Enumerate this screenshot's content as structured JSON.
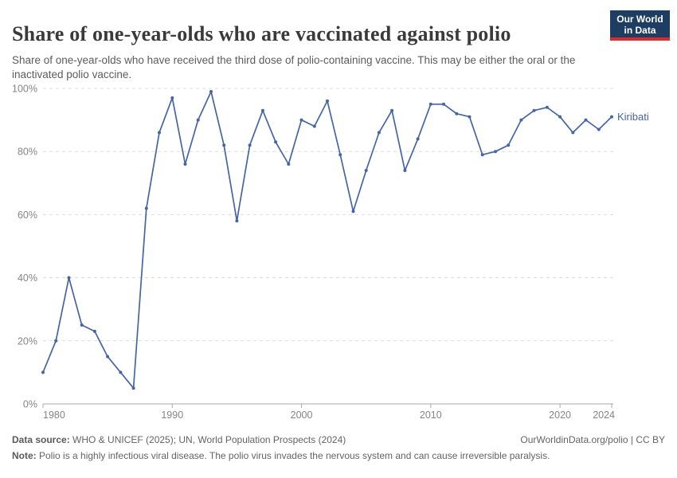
{
  "header": {
    "title": "Share of one-year-olds who are vaccinated against polio",
    "subtitle": "Share of one-year-olds who have received the third dose of polio-containing vaccine. This may be either the oral or the inactivated polio vaccine.",
    "logo": {
      "line1": "Our World",
      "line2": "in Data",
      "bg_color": "#1d3d63",
      "stripe_color": "#dc2a2f"
    }
  },
  "chart_data": {
    "type": "line",
    "title": "Share of one-year-olds who are vaccinated against polio",
    "xlabel": "",
    "ylabel": "",
    "xlim": [
      1980,
      2024
    ],
    "ylim": [
      0,
      100
    ],
    "x_ticks": [
      1980,
      1990,
      2000,
      2010,
      2020,
      2024
    ],
    "y_ticks": [
      0,
      20,
      40,
      60,
      80,
      100
    ],
    "y_unit": "%",
    "grid": "horizontal-dashed",
    "legend": "entity-label-at-line-end",
    "x": [
      1980,
      1981,
      1982,
      1983,
      1984,
      1985,
      1986,
      1987,
      1988,
      1989,
      1990,
      1991,
      1992,
      1993,
      1994,
      1995,
      1996,
      1997,
      1998,
      1999,
      2000,
      2001,
      2002,
      2003,
      2004,
      2005,
      2006,
      2007,
      2008,
      2009,
      2010,
      2011,
      2012,
      2013,
      2014,
      2015,
      2016,
      2017,
      2018,
      2019,
      2020,
      2021,
      2022,
      2023,
      2024
    ],
    "series": [
      {
        "name": "Kiribati",
        "color": "#4565a3",
        "values": [
          10,
          20,
          40,
          25,
          23,
          15,
          10,
          5,
          62,
          86,
          97,
          76,
          90,
          99,
          82,
          58,
          82,
          93,
          83,
          76,
          90,
          88,
          96,
          79,
          61,
          74,
          86,
          93,
          74,
          84,
          95,
          95,
          92,
          91,
          79,
          80,
          82,
          90,
          93,
          94,
          91,
          86,
          90,
          87,
          91
        ]
      }
    ]
  },
  "footer": {
    "source_label": "Data source:",
    "source_text": " WHO & UNICEF (2025); UN, World Population Prospects (2024)",
    "license_text": "OurWorldinData.org/polio | CC BY",
    "note_label": "Note:",
    "note_text": " Polio is a highly infectious viral disease. The polio virus invades the nervous system and can cause irreversible paralysis."
  }
}
